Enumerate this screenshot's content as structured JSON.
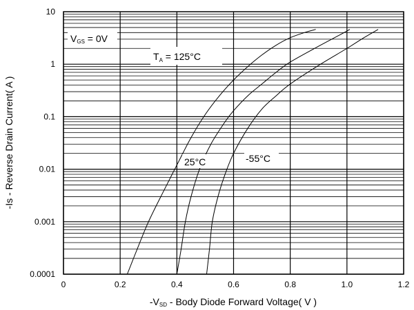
{
  "chart_data": {
    "type": "line",
    "xlabel": "-Vₛᴅ - Body Diode Forward Voltage( V )",
    "xlabel_parts": {
      "pre": "-V",
      "sub": "SD",
      "post": " - Body Diode Forward Voltage( V )"
    },
    "ylabel": "-Is - Reverse Drain Current( A )",
    "xlim": [
      0,
      1.2
    ],
    "ylim": [
      0.0001,
      10
    ],
    "yscale": "log",
    "grid": true,
    "x_ticks": [
      "0",
      "0.2",
      "0.4",
      "0.6",
      "0.8",
      "1.0",
      "1.2"
    ],
    "x_tick_values": [
      0,
      0.2,
      0.4,
      0.6,
      0.8,
      1.0,
      1.2
    ],
    "y_ticks": [
      "0.0001",
      "0.001",
      "0.01",
      "0.1",
      "1",
      "10"
    ],
    "y_tick_values": [
      0.0001,
      0.001,
      0.01,
      0.1,
      1,
      10
    ],
    "annotations": {
      "vgs": {
        "pre": "V",
        "sub": "GS",
        "post": " = 0V"
      },
      "ta": {
        "pre": "T",
        "sub": "A",
        "post": " = 125°C"
      },
      "t25": "25°C",
      "tm55": "-55°C"
    },
    "series": [
      {
        "temp": "125°C",
        "points": [
          [
            0.225,
            0.0001
          ],
          [
            0.26,
            0.0003
          ],
          [
            0.3,
            0.001
          ],
          [
            0.355,
            0.004
          ],
          [
            0.4,
            0.012
          ],
          [
            0.45,
            0.04
          ],
          [
            0.5,
            0.11
          ],
          [
            0.55,
            0.25
          ],
          [
            0.6,
            0.5
          ],
          [
            0.65,
            0.9
          ],
          [
            0.7,
            1.5
          ],
          [
            0.75,
            2.3
          ],
          [
            0.8,
            3.2
          ],
          [
            0.85,
            4.0
          ],
          [
            0.89,
            4.6
          ]
        ]
      },
      {
        "temp": "25°C",
        "points": [
          [
            0.4,
            0.0001
          ],
          [
            0.415,
            0.0003
          ],
          [
            0.43,
            0.001
          ],
          [
            0.45,
            0.003
          ],
          [
            0.48,
            0.01
          ],
          [
            0.52,
            0.03
          ],
          [
            0.57,
            0.08
          ],
          [
            0.6,
            0.13
          ],
          [
            0.65,
            0.25
          ],
          [
            0.7,
            0.42
          ],
          [
            0.75,
            0.7
          ],
          [
            0.8,
            1.1
          ],
          [
            0.9,
            2.2
          ],
          [
            0.97,
            3.5
          ],
          [
            1.01,
            4.6
          ]
        ]
      },
      {
        "temp": "-55°C",
        "points": [
          [
            0.505,
            0.0001
          ],
          [
            0.515,
            0.0003
          ],
          [
            0.525,
            0.001
          ],
          [
            0.545,
            0.003
          ],
          [
            0.57,
            0.008
          ],
          [
            0.6,
            0.02
          ],
          [
            0.65,
            0.06
          ],
          [
            0.7,
            0.14
          ],
          [
            0.75,
            0.25
          ],
          [
            0.8,
            0.42
          ],
          [
            0.9,
            0.95
          ],
          [
            1.0,
            2.0
          ],
          [
            1.06,
            3.2
          ],
          [
            1.11,
            4.6
          ]
        ]
      }
    ]
  }
}
